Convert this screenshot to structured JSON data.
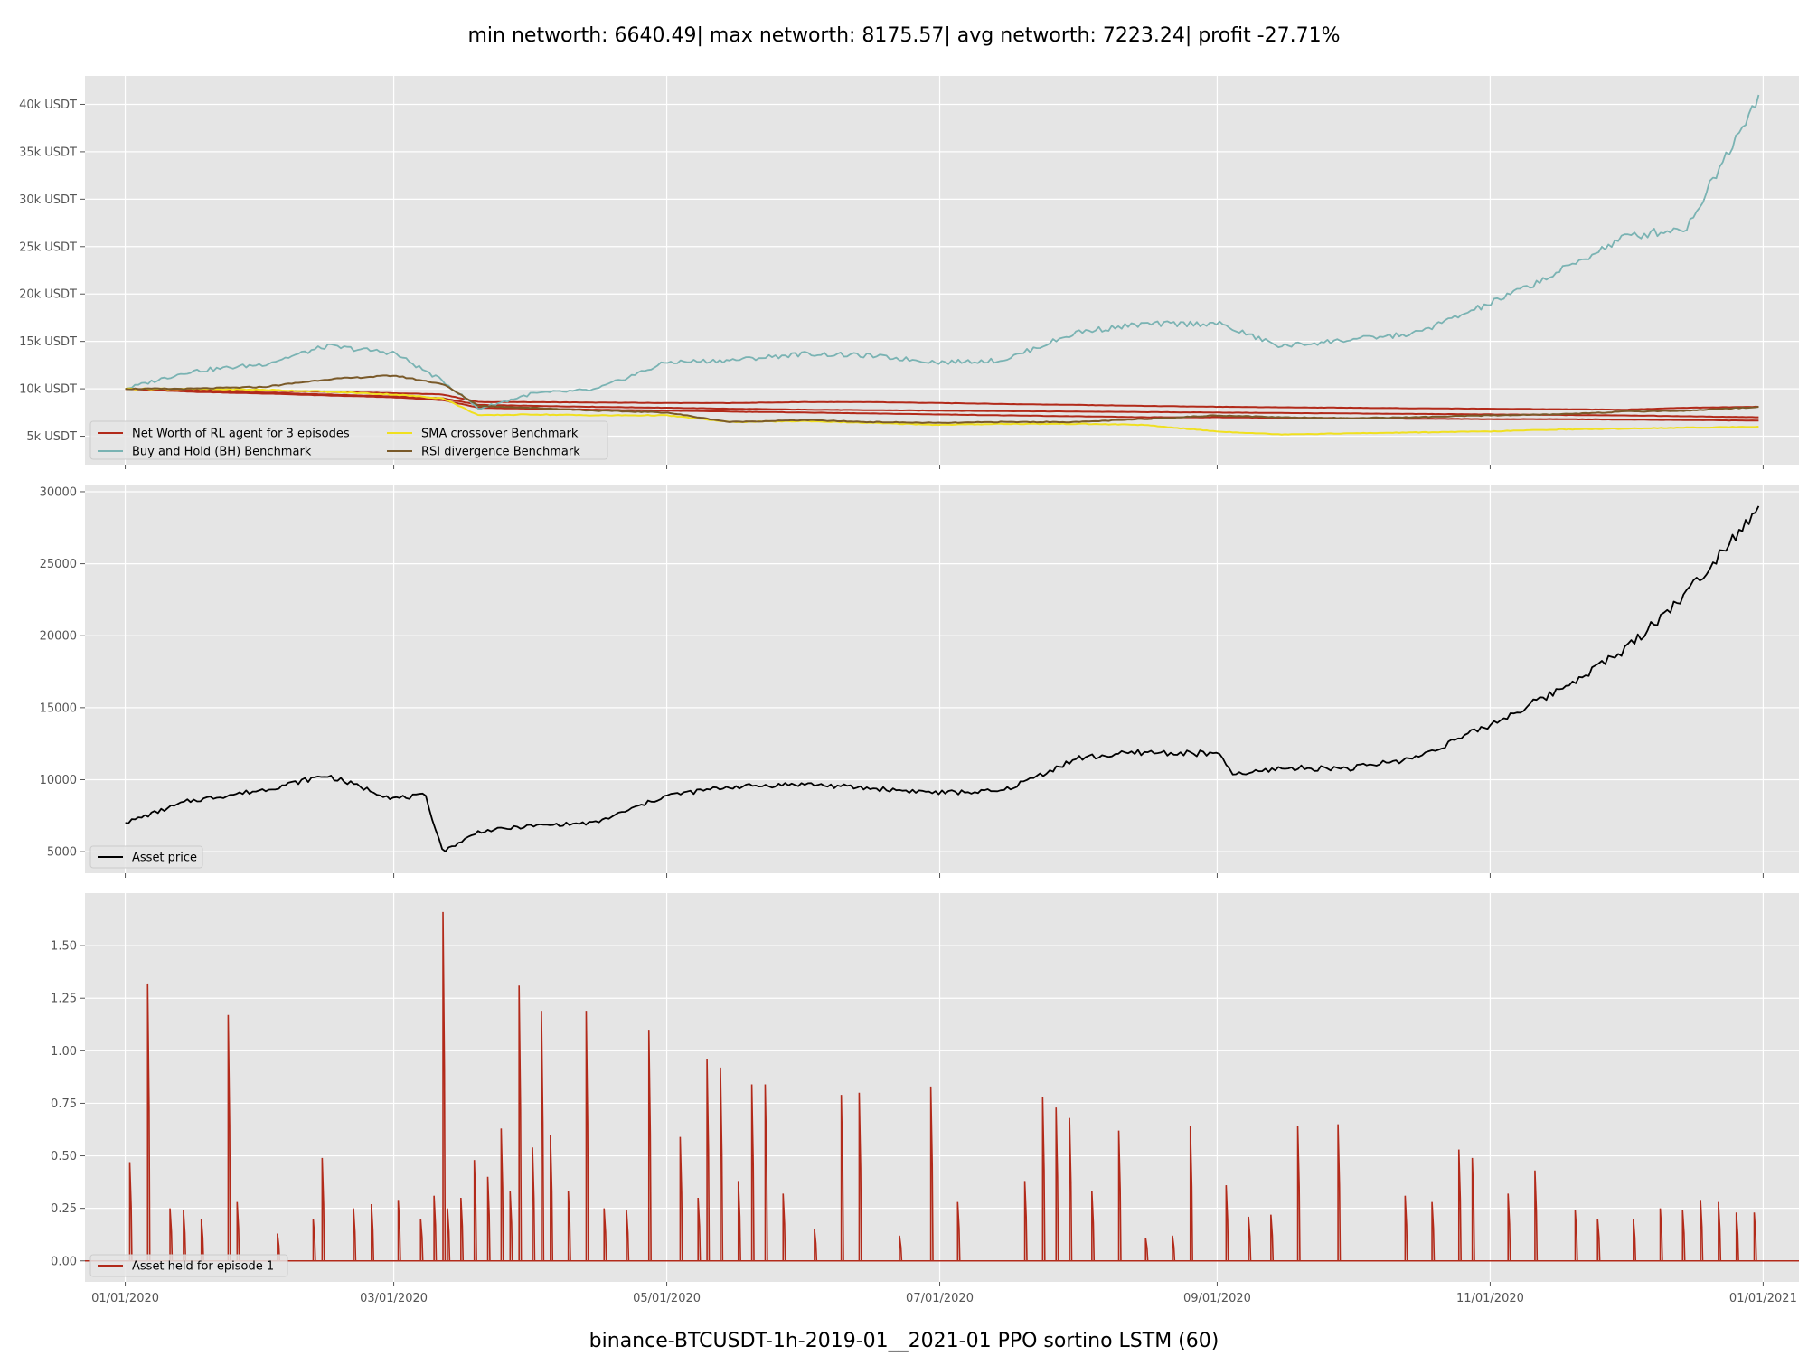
{
  "title": "min networth: 6640.49| max networth: 8175.57| avg networth: 7223.24| profit -27.71%",
  "xlabel": "binance-BTCUSDT-1h-2019-01__2021-01 PPO sortino LSTM (60)",
  "x_ticks": [
    "01/01/2020",
    "03/01/2020",
    "05/01/2020",
    "07/01/2020",
    "09/01/2020",
    "11/01/2020",
    "01/01/2021"
  ],
  "colors": {
    "background": "#e5e5e5",
    "grid": "#ffffff",
    "rl_agent": "#b22a1a",
    "buy_hold": "#7ab3b3",
    "sma": "#f0e020",
    "rsi": "#7a5a2a",
    "asset_price": "#000000",
    "asset_held": "#b22a1a"
  },
  "chart_data": [
    {
      "type": "line",
      "ylabel": "",
      "ylim": [
        2000,
        43000
      ],
      "y_ticks": [
        {
          "value": 5000,
          "label": "5k USDT"
        },
        {
          "value": 10000,
          "label": "10k USDT"
        },
        {
          "value": 15000,
          "label": "15k USDT"
        },
        {
          "value": 20000,
          "label": "20k USDT"
        },
        {
          "value": 25000,
          "label": "25k USDT"
        },
        {
          "value": 30000,
          "label": "30k USDT"
        },
        {
          "value": 35000,
          "label": "35k USDT"
        },
        {
          "value": 40000,
          "label": "40k USDT"
        }
      ],
      "grid": true,
      "legend_position": "lower-left",
      "x": [
        "2020-01-01",
        "2020-01-15",
        "2020-02-01",
        "2020-02-15",
        "2020-03-01",
        "2020-03-12",
        "2020-03-20",
        "2020-04-01",
        "2020-04-15",
        "2020-05-01",
        "2020-05-15",
        "2020-06-01",
        "2020-06-15",
        "2020-07-01",
        "2020-07-15",
        "2020-08-01",
        "2020-08-15",
        "2020-09-01",
        "2020-09-15",
        "2020-10-01",
        "2020-10-15",
        "2020-11-01",
        "2020-11-15",
        "2020-12-01",
        "2020-12-15",
        "2020-12-31"
      ],
      "series": [
        {
          "name": "Net Worth of RL agent for 3 episodes",
          "color_key": "rl_agent",
          "values": [
            10000,
            9900,
            9800,
            9700,
            9550,
            9400,
            8600,
            8600,
            8550,
            8500,
            8500,
            8600,
            8600,
            8500,
            8400,
            8300,
            8200,
            8100,
            8050,
            8000,
            7950,
            7900,
            7850,
            7800,
            8000,
            8100
          ]
        },
        {
          "name": "",
          "color_key": "rl_agent",
          "values": [
            10000,
            9800,
            9600,
            9400,
            9200,
            9000,
            8300,
            8200,
            8100,
            8000,
            7900,
            7800,
            7750,
            7700,
            7650,
            7600,
            7550,
            7500,
            7450,
            7400,
            7350,
            7300,
            7250,
            7200,
            7100,
            7000
          ]
        },
        {
          "name": "",
          "color_key": "rl_agent",
          "values": [
            10000,
            9700,
            9500,
            9300,
            9100,
            8800,
            8000,
            7900,
            7800,
            7700,
            7600,
            7500,
            7400,
            7300,
            7200,
            7100,
            7000,
            7000,
            6950,
            6900,
            6850,
            6800,
            6800,
            6750,
            6700,
            6650
          ]
        },
        {
          "name": "Buy and Hold (BH) Benchmark",
          "color_key": "buy_hold",
          "values": [
            10000,
            11800,
            12600,
            14500,
            13800,
            10800,
            7900,
            9500,
            9900,
            12800,
            13000,
            13700,
            13500,
            12800,
            13000,
            16000,
            16800,
            16900,
            14500,
            15200,
            15800,
            19000,
            22000,
            26000,
            27000,
            41000
          ]
        },
        {
          "name": "SMA crossover Benchmark",
          "color_key": "sma",
          "values": [
            10000,
            10000,
            9900,
            9700,
            9400,
            9000,
            7200,
            7300,
            7200,
            7200,
            6500,
            6600,
            6400,
            6200,
            6300,
            6300,
            6200,
            5500,
            5200,
            5300,
            5400,
            5500,
            5700,
            5800,
            5900,
            6000
          ]
        },
        {
          "name": "RSI divergence Benchmark",
          "color_key": "rsi",
          "values": [
            10000,
            10000,
            10200,
            11000,
            11400,
            10500,
            8200,
            8000,
            7700,
            7500,
            6500,
            6700,
            6500,
            6400,
            6500,
            6500,
            6800,
            7200,
            7000,
            6900,
            7000,
            7200,
            7300,
            7600,
            7700,
            8100
          ]
        }
      ]
    },
    {
      "type": "line",
      "ylabel": "",
      "ylim": [
        3500,
        30500
      ],
      "y_ticks": [
        {
          "value": 5000,
          "label": "5000"
        },
        {
          "value": 10000,
          "label": "10000"
        },
        {
          "value": 15000,
          "label": "15000"
        },
        {
          "value": 20000,
          "label": "20000"
        },
        {
          "value": 25000,
          "label": "25000"
        },
        {
          "value": 30000,
          "label": "30000"
        }
      ],
      "grid": true,
      "legend_position": "lower-left",
      "x": [
        "2020-01-01",
        "2020-01-15",
        "2020-02-01",
        "2020-02-15",
        "2020-03-01",
        "2020-03-08",
        "2020-03-12",
        "2020-03-20",
        "2020-04-01",
        "2020-04-15",
        "2020-05-01",
        "2020-05-15",
        "2020-06-01",
        "2020-06-15",
        "2020-07-01",
        "2020-07-15",
        "2020-08-01",
        "2020-08-15",
        "2020-09-01",
        "2020-09-05",
        "2020-09-15",
        "2020-10-01",
        "2020-10-15",
        "2020-11-01",
        "2020-11-15",
        "2020-12-01",
        "2020-12-15",
        "2020-12-31"
      ],
      "series": [
        {
          "name": "Asset price",
          "color_key": "asset_price",
          "values": [
            7000,
            8500,
            9300,
            10300,
            8700,
            8900,
            5000,
            6400,
            6800,
            7000,
            8900,
            9500,
            9700,
            9400,
            9100,
            9200,
            11500,
            11900,
            11800,
            10300,
            10800,
            10800,
            11500,
            13800,
            16000,
            19000,
            23000,
            29000
          ]
        }
      ]
    },
    {
      "type": "line",
      "ylabel": "",
      "ylim": [
        -0.1,
        1.75
      ],
      "y_ticks": [
        {
          "value": 0,
          "label": "0.00"
        },
        {
          "value": 0.25,
          "label": "0.25"
        },
        {
          "value": 0.5,
          "label": "0.50"
        },
        {
          "value": 0.75,
          "label": "0.75"
        },
        {
          "value": 1.0,
          "label": "1.00"
        },
        {
          "value": 1.25,
          "label": "1.25"
        },
        {
          "value": 1.5,
          "label": "1.50"
        }
      ],
      "grid": true,
      "legend_position": "lower-left",
      "series": [
        {
          "name": "Asset held for episode 1",
          "color_key": "asset_held",
          "points": [
            [
              "2020-01-02",
              0.47
            ],
            [
              "2020-01-06",
              1.32
            ],
            [
              "2020-01-11",
              0.25
            ],
            [
              "2020-01-14",
              0.24
            ],
            [
              "2020-01-18",
              0.2
            ],
            [
              "2020-01-24",
              1.17
            ],
            [
              "2020-01-26",
              0.28
            ],
            [
              "2020-02-04",
              0.13
            ],
            [
              "2020-02-12",
              0.2
            ],
            [
              "2020-02-14",
              0.49
            ],
            [
              "2020-02-21",
              0.25
            ],
            [
              "2020-02-25",
              0.27
            ],
            [
              "2020-03-02",
              0.29
            ],
            [
              "2020-03-07",
              0.2
            ],
            [
              "2020-03-10",
              0.31
            ],
            [
              "2020-03-12",
              1.66
            ],
            [
              "2020-03-13",
              0.25
            ],
            [
              "2020-03-16",
              0.3
            ],
            [
              "2020-03-19",
              0.48
            ],
            [
              "2020-03-22",
              0.4
            ],
            [
              "2020-03-25",
              0.63
            ],
            [
              "2020-03-27",
              0.33
            ],
            [
              "2020-03-29",
              1.31
            ],
            [
              "2020-04-01",
              0.54
            ],
            [
              "2020-04-03",
              1.19
            ],
            [
              "2020-04-05",
              0.6
            ],
            [
              "2020-04-09",
              0.33
            ],
            [
              "2020-04-13",
              1.19
            ],
            [
              "2020-04-17",
              0.25
            ],
            [
              "2020-04-22",
              0.24
            ],
            [
              "2020-04-27",
              1.1
            ],
            [
              "2020-05-04",
              0.59
            ],
            [
              "2020-05-08",
              0.3
            ],
            [
              "2020-05-10",
              0.96
            ],
            [
              "2020-05-13",
              0.92
            ],
            [
              "2020-05-17",
              0.38
            ],
            [
              "2020-05-20",
              0.84
            ],
            [
              "2020-05-23",
              0.84
            ],
            [
              "2020-05-27",
              0.32
            ],
            [
              "2020-06-03",
              0.15
            ],
            [
              "2020-06-09",
              0.79
            ],
            [
              "2020-06-13",
              0.8
            ],
            [
              "2020-06-22",
              0.12
            ],
            [
              "2020-06-29",
              0.83
            ],
            [
              "2020-07-05",
              0.28
            ],
            [
              "2020-07-20",
              0.38
            ],
            [
              "2020-07-24",
              0.78
            ],
            [
              "2020-07-27",
              0.73
            ],
            [
              "2020-07-30",
              0.68
            ],
            [
              "2020-08-04",
              0.33
            ],
            [
              "2020-08-10",
              0.62
            ],
            [
              "2020-08-16",
              0.11
            ],
            [
              "2020-08-22",
              0.12
            ],
            [
              "2020-08-26",
              0.64
            ],
            [
              "2020-09-03",
              0.36
            ],
            [
              "2020-09-08",
              0.21
            ],
            [
              "2020-09-13",
              0.22
            ],
            [
              "2020-09-19",
              0.64
            ],
            [
              "2020-09-28",
              0.65
            ],
            [
              "2020-10-13",
              0.31
            ],
            [
              "2020-10-19",
              0.28
            ],
            [
              "2020-10-25",
              0.53
            ],
            [
              "2020-10-28",
              0.49
            ],
            [
              "2020-11-05",
              0.32
            ],
            [
              "2020-11-11",
              0.43
            ],
            [
              "2020-11-20",
              0.24
            ],
            [
              "2020-11-25",
              0.2
            ],
            [
              "2020-12-03",
              0.2
            ],
            [
              "2020-12-09",
              0.25
            ],
            [
              "2020-12-14",
              0.24
            ],
            [
              "2020-12-18",
              0.29
            ],
            [
              "2020-12-22",
              0.28
            ],
            [
              "2020-12-26",
              0.23
            ],
            [
              "2020-12-30",
              0.23
            ]
          ]
        }
      ]
    }
  ]
}
